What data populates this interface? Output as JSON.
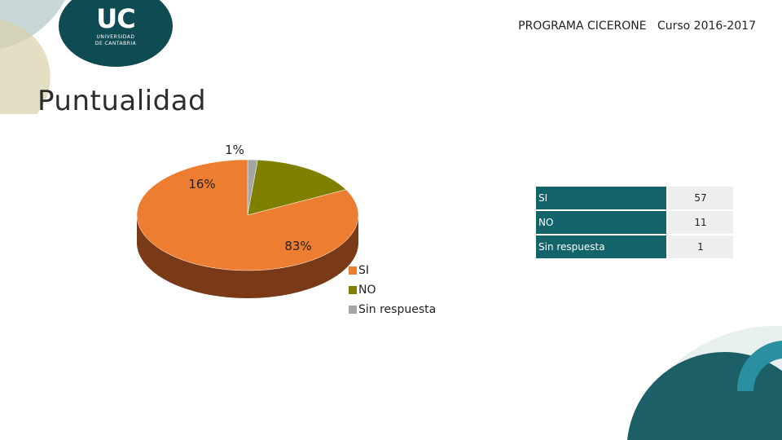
{
  "header": {
    "text": "PROGRAMA CICERONE   Curso 2016-2017"
  },
  "title": "Puntualidad",
  "logo": {
    "mark": "UC",
    "line1": "UNIVERSIDAD",
    "line2": "DE CANTABRIA"
  },
  "colors": {
    "si": "#ed7d31",
    "si_side": "#7a3a17",
    "no": "#7f7f00",
    "sin": "#a5a5a5",
    "teal": "#13636a"
  },
  "chart_data": {
    "type": "pie",
    "categories": [
      "SI",
      "NO",
      "Sin respuesta"
    ],
    "values": [
      57,
      11,
      1
    ],
    "percent_labels": [
      "83%",
      "16%",
      "1%"
    ],
    "legend_position": "bottom-right"
  },
  "table": {
    "rows": [
      {
        "label": "SI",
        "value": "57"
      },
      {
        "label": "NO",
        "value": "11"
      },
      {
        "label": "Sin respuesta",
        "value": "1"
      }
    ]
  }
}
